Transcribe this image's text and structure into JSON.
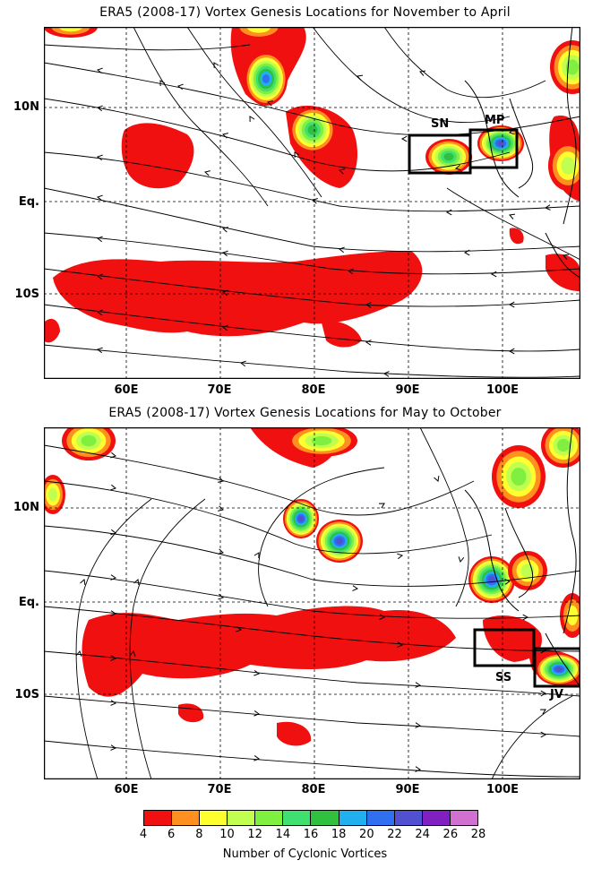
{
  "panels": [
    {
      "title": "ERA5 (2008-17) Vortex Genesis Locations for November to April",
      "y_labels": [
        "10N",
        "Eq.",
        "10S"
      ],
      "x_labels": [
        "60E",
        "70E",
        "80E",
        "90E",
        "100E"
      ],
      "boxes": [
        {
          "label": "SN"
        },
        {
          "label": "MP"
        }
      ]
    },
    {
      "title": "ERA5 (2008-17) Vortex Genesis Locations for May to October",
      "y_labels": [
        "10N",
        "Eq.",
        "10S"
      ],
      "x_labels": [
        "60E",
        "70E",
        "80E",
        "90E",
        "100E"
      ],
      "boxes": [
        {
          "label": "SS"
        },
        {
          "label": "JV"
        }
      ]
    }
  ],
  "colorbar": {
    "ticks": [
      "4",
      "6",
      "8",
      "10",
      "12",
      "14",
      "16",
      "18",
      "20",
      "22",
      "24",
      "26",
      "28"
    ],
    "colors": [
      "#f01010",
      "#ff9020",
      "#ffff30",
      "#c0ff50",
      "#80f040",
      "#40e070",
      "#30c040",
      "#20b0f0",
      "#3070f0",
      "#5050d0",
      "#8020c0",
      "#d070d0"
    ],
    "title": "Number of Cyclonic Vortices"
  }
}
